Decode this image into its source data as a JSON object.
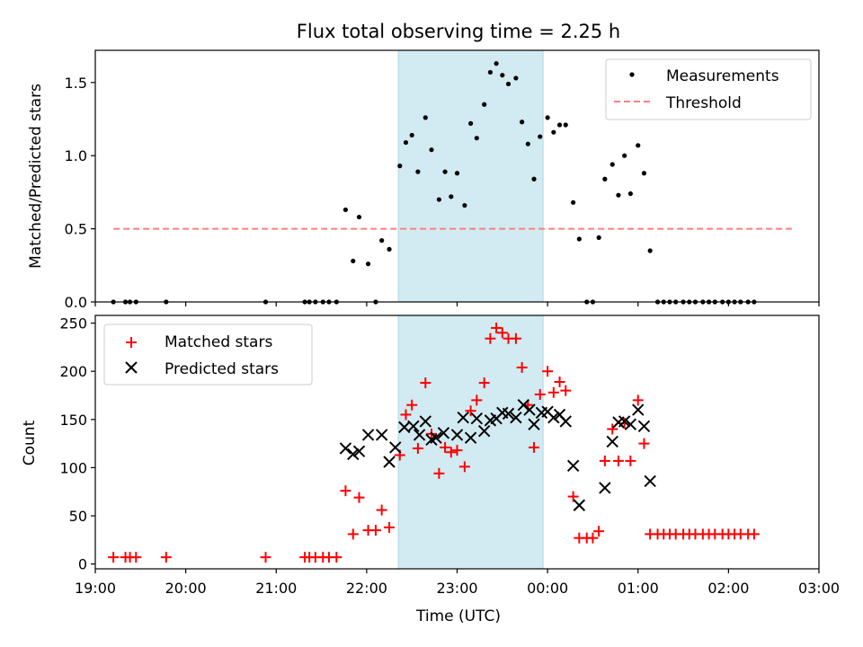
{
  "figure": {
    "title": "Flux total observing time = 2.25 h"
  },
  "colors": {
    "shade": "#add8e6",
    "measurement": "#000000",
    "threshold": "#ff7f7f",
    "matched": "#ff0000",
    "predicted": "#000000"
  },
  "chart_data": [
    {
      "type": "scatter",
      "ylabel": "Matched/Predicted stars",
      "ylim": [
        0,
        1.72
      ],
      "yticks": [
        0.0,
        0.5,
        1.0,
        1.5
      ],
      "ytick_labels": [
        "0.0",
        "0.5",
        "1.0",
        "1.5"
      ],
      "xlim": [
        "19:00",
        "03:00"
      ],
      "grid": false,
      "legend_placement": "top-right",
      "shaded_window": [
        "22:21",
        "23:57"
      ],
      "threshold": {
        "name": "Threshold",
        "value": 0.5,
        "x_start": "19:12",
        "x_end": "02:42"
      },
      "series": [
        {
          "name": "Measurements",
          "points": [
            [
              "19:12",
              0
            ],
            [
              "19:20",
              0
            ],
            [
              "19:23",
              0
            ],
            [
              "19:27",
              0
            ],
            [
              "19:47",
              0
            ],
            [
              "20:53",
              0
            ],
            [
              "21:19",
              0
            ],
            [
              "21:22",
              0
            ],
            [
              "21:26",
              0
            ],
            [
              "21:31",
              0
            ],
            [
              "21:35",
              0
            ],
            [
              "21:40",
              0
            ],
            [
              "21:46",
              0.63
            ],
            [
              "21:51",
              0.28
            ],
            [
              "21:55",
              0.58
            ],
            [
              "22:01",
              0.26
            ],
            [
              "22:06",
              0
            ],
            [
              "22:10",
              0.42
            ],
            [
              "22:15",
              0.36
            ],
            [
              "22:22",
              0.93
            ],
            [
              "22:26",
              1.09
            ],
            [
              "22:30",
              1.14
            ],
            [
              "22:34",
              0.89
            ],
            [
              "22:39",
              1.26
            ],
            [
              "22:43",
              1.04
            ],
            [
              "22:48",
              0.7
            ],
            [
              "22:52",
              0.89
            ],
            [
              "22:56",
              0.72
            ],
            [
              "23:00",
              0.88
            ],
            [
              "23:05",
              0.66
            ],
            [
              "23:09",
              1.22
            ],
            [
              "23:13",
              1.12
            ],
            [
              "23:18",
              1.35
            ],
            [
              "23:22",
              1.57
            ],
            [
              "23:26",
              1.63
            ],
            [
              "23:30",
              1.55
            ],
            [
              "23:34",
              1.49
            ],
            [
              "23:39",
              1.53
            ],
            [
              "23:43",
              1.23
            ],
            [
              "23:47",
              1.08
            ],
            [
              "23:51",
              0.84
            ],
            [
              "23:55",
              1.13
            ],
            [
              "24:00",
              1.26
            ],
            [
              "24:04",
              1.16
            ],
            [
              "24:08",
              1.21
            ],
            [
              "24:12",
              1.21
            ],
            [
              "24:17",
              0.68
            ],
            [
              "24:21",
              0.43
            ],
            [
              "24:26",
              0
            ],
            [
              "24:30",
              0
            ],
            [
              "24:34",
              0.44
            ],
            [
              "24:38",
              0.84
            ],
            [
              "24:43",
              0.94
            ],
            [
              "24:47",
              0.73
            ],
            [
              "24:51",
              1.0
            ],
            [
              "24:55",
              0.74
            ],
            [
              "25:00",
              1.07
            ],
            [
              "25:04",
              0.88
            ],
            [
              "25:08",
              0.35
            ],
            [
              "25:13",
              0
            ],
            [
              "25:17",
              0
            ],
            [
              "25:21",
              0
            ],
            [
              "25:25",
              0
            ],
            [
              "25:30",
              0
            ],
            [
              "25:34",
              0
            ],
            [
              "25:38",
              0
            ],
            [
              "25:43",
              0
            ],
            [
              "25:47",
              0
            ],
            [
              "25:51",
              0
            ],
            [
              "25:56",
              0
            ],
            [
              "26:00",
              0
            ],
            [
              "26:04",
              0
            ],
            [
              "26:08",
              0
            ],
            [
              "26:13",
              0
            ],
            [
              "26:17",
              0
            ]
          ]
        }
      ]
    },
    {
      "type": "scatter",
      "xlabel": "Time (UTC)",
      "ylabel": "Count",
      "ylim": [
        -5,
        258
      ],
      "yticks": [
        0,
        50,
        100,
        150,
        200,
        250
      ],
      "ytick_labels": [
        "0",
        "50",
        "100",
        "150",
        "200",
        "250"
      ],
      "xlim": [
        "19:00",
        "03:00"
      ],
      "xticks": [
        "19:00",
        "20:00",
        "21:00",
        "22:00",
        "23:00",
        "00:00",
        "01:00",
        "02:00",
        "03:00"
      ],
      "grid": false,
      "legend_placement": "top-left",
      "shaded_window": [
        "22:21",
        "23:57"
      ],
      "series": [
        {
          "name": "Matched stars",
          "marker": "plus",
          "points": [
            [
              "19:12",
              7
            ],
            [
              "19:20",
              7
            ],
            [
              "19:23",
              7
            ],
            [
              "19:27",
              7
            ],
            [
              "19:47",
              7
            ],
            [
              "20:53",
              7
            ],
            [
              "21:19",
              7
            ],
            [
              "21:22",
              7
            ],
            [
              "21:26",
              7
            ],
            [
              "21:31",
              7
            ],
            [
              "21:35",
              7
            ],
            [
              "21:40",
              7
            ],
            [
              "21:46",
              76
            ],
            [
              "21:51",
              31
            ],
            [
              "21:55",
              69
            ],
            [
              "22:01",
              35
            ],
            [
              "22:06",
              35
            ],
            [
              "22:10",
              56
            ],
            [
              "22:15",
              38
            ],
            [
              "22:22",
              113
            ],
            [
              "22:26",
              155
            ],
            [
              "22:30",
              165
            ],
            [
              "22:34",
              120
            ],
            [
              "22:39",
              188
            ],
            [
              "22:43",
              135
            ],
            [
              "22:48",
              94
            ],
            [
              "22:52",
              121
            ],
            [
              "22:56",
              116
            ],
            [
              "23:00",
              118
            ],
            [
              "23:05",
              101
            ],
            [
              "23:09",
              159
            ],
            [
              "23:13",
              170
            ],
            [
              "23:18",
              188
            ],
            [
              "23:22",
              234
            ],
            [
              "23:26",
              245
            ],
            [
              "23:30",
              240
            ],
            [
              "23:34",
              234
            ],
            [
              "23:39",
              234
            ],
            [
              "23:43",
              204
            ],
            [
              "23:47",
              165
            ],
            [
              "23:51",
              121
            ],
            [
              "23:55",
              176
            ],
            [
              "24:00",
              200
            ],
            [
              "24:04",
              178
            ],
            [
              "24:08",
              189
            ],
            [
              "24:12",
              180
            ],
            [
              "24:17",
              70
            ],
            [
              "24:21",
              27
            ],
            [
              "24:26",
              27
            ],
            [
              "24:30",
              27
            ],
            [
              "24:34",
              34
            ],
            [
              "24:38",
              107
            ],
            [
              "24:43",
              140
            ],
            [
              "24:47",
              107
            ],
            [
              "24:51",
              146
            ],
            [
              "24:55",
              107
            ],
            [
              "25:00",
              170
            ],
            [
              "25:04",
              125
            ],
            [
              "25:08",
              31
            ],
            [
              "25:13",
              31
            ],
            [
              "25:17",
              31
            ],
            [
              "25:21",
              31
            ],
            [
              "25:25",
              31
            ],
            [
              "25:30",
              31
            ],
            [
              "25:34",
              31
            ],
            [
              "25:38",
              31
            ],
            [
              "25:43",
              31
            ],
            [
              "25:47",
              31
            ],
            [
              "25:51",
              31
            ],
            [
              "25:56",
              31
            ],
            [
              "26:00",
              31
            ],
            [
              "26:04",
              31
            ],
            [
              "26:08",
              31
            ],
            [
              "26:13",
              31
            ],
            [
              "26:17",
              31
            ]
          ]
        },
        {
          "name": "Predicted stars",
          "marker": "x",
          "points": [
            [
              "21:46",
              120
            ],
            [
              "21:51",
              114
            ],
            [
              "21:55",
              117
            ],
            [
              "22:01",
              134
            ],
            [
              "22:10",
              134
            ],
            [
              "22:15",
              106
            ],
            [
              "22:19",
              121
            ],
            [
              "22:25",
              142
            ],
            [
              "22:31",
              143
            ],
            [
              "22:35",
              134
            ],
            [
              "22:39",
              148
            ],
            [
              "22:43",
              129
            ],
            [
              "22:46",
              131
            ],
            [
              "22:51",
              136
            ],
            [
              "23:00",
              134
            ],
            [
              "23:04",
              152
            ],
            [
              "23:09",
              131
            ],
            [
              "23:13",
              151
            ],
            [
              "23:18",
              138
            ],
            [
              "23:22",
              149
            ],
            [
              "23:26",
              151
            ],
            [
              "23:30",
              157
            ],
            [
              "23:34",
              156
            ],
            [
              "23:39",
              152
            ],
            [
              "23:44",
              165
            ],
            [
              "23:48",
              160
            ],
            [
              "23:51",
              145
            ],
            [
              "23:56",
              157
            ],
            [
              "24:00",
              158
            ],
            [
              "24:04",
              152
            ],
            [
              "24:08",
              155
            ],
            [
              "24:12",
              148
            ],
            [
              "24:17",
              102
            ],
            [
              "24:21",
              61
            ],
            [
              "24:38",
              79
            ],
            [
              "24:43",
              127
            ],
            [
              "24:47",
              147
            ],
            [
              "24:51",
              148
            ],
            [
              "24:55",
              145
            ],
            [
              "25:00",
              160
            ],
            [
              "25:04",
              143
            ],
            [
              "25:08",
              86
            ]
          ]
        }
      ]
    }
  ]
}
